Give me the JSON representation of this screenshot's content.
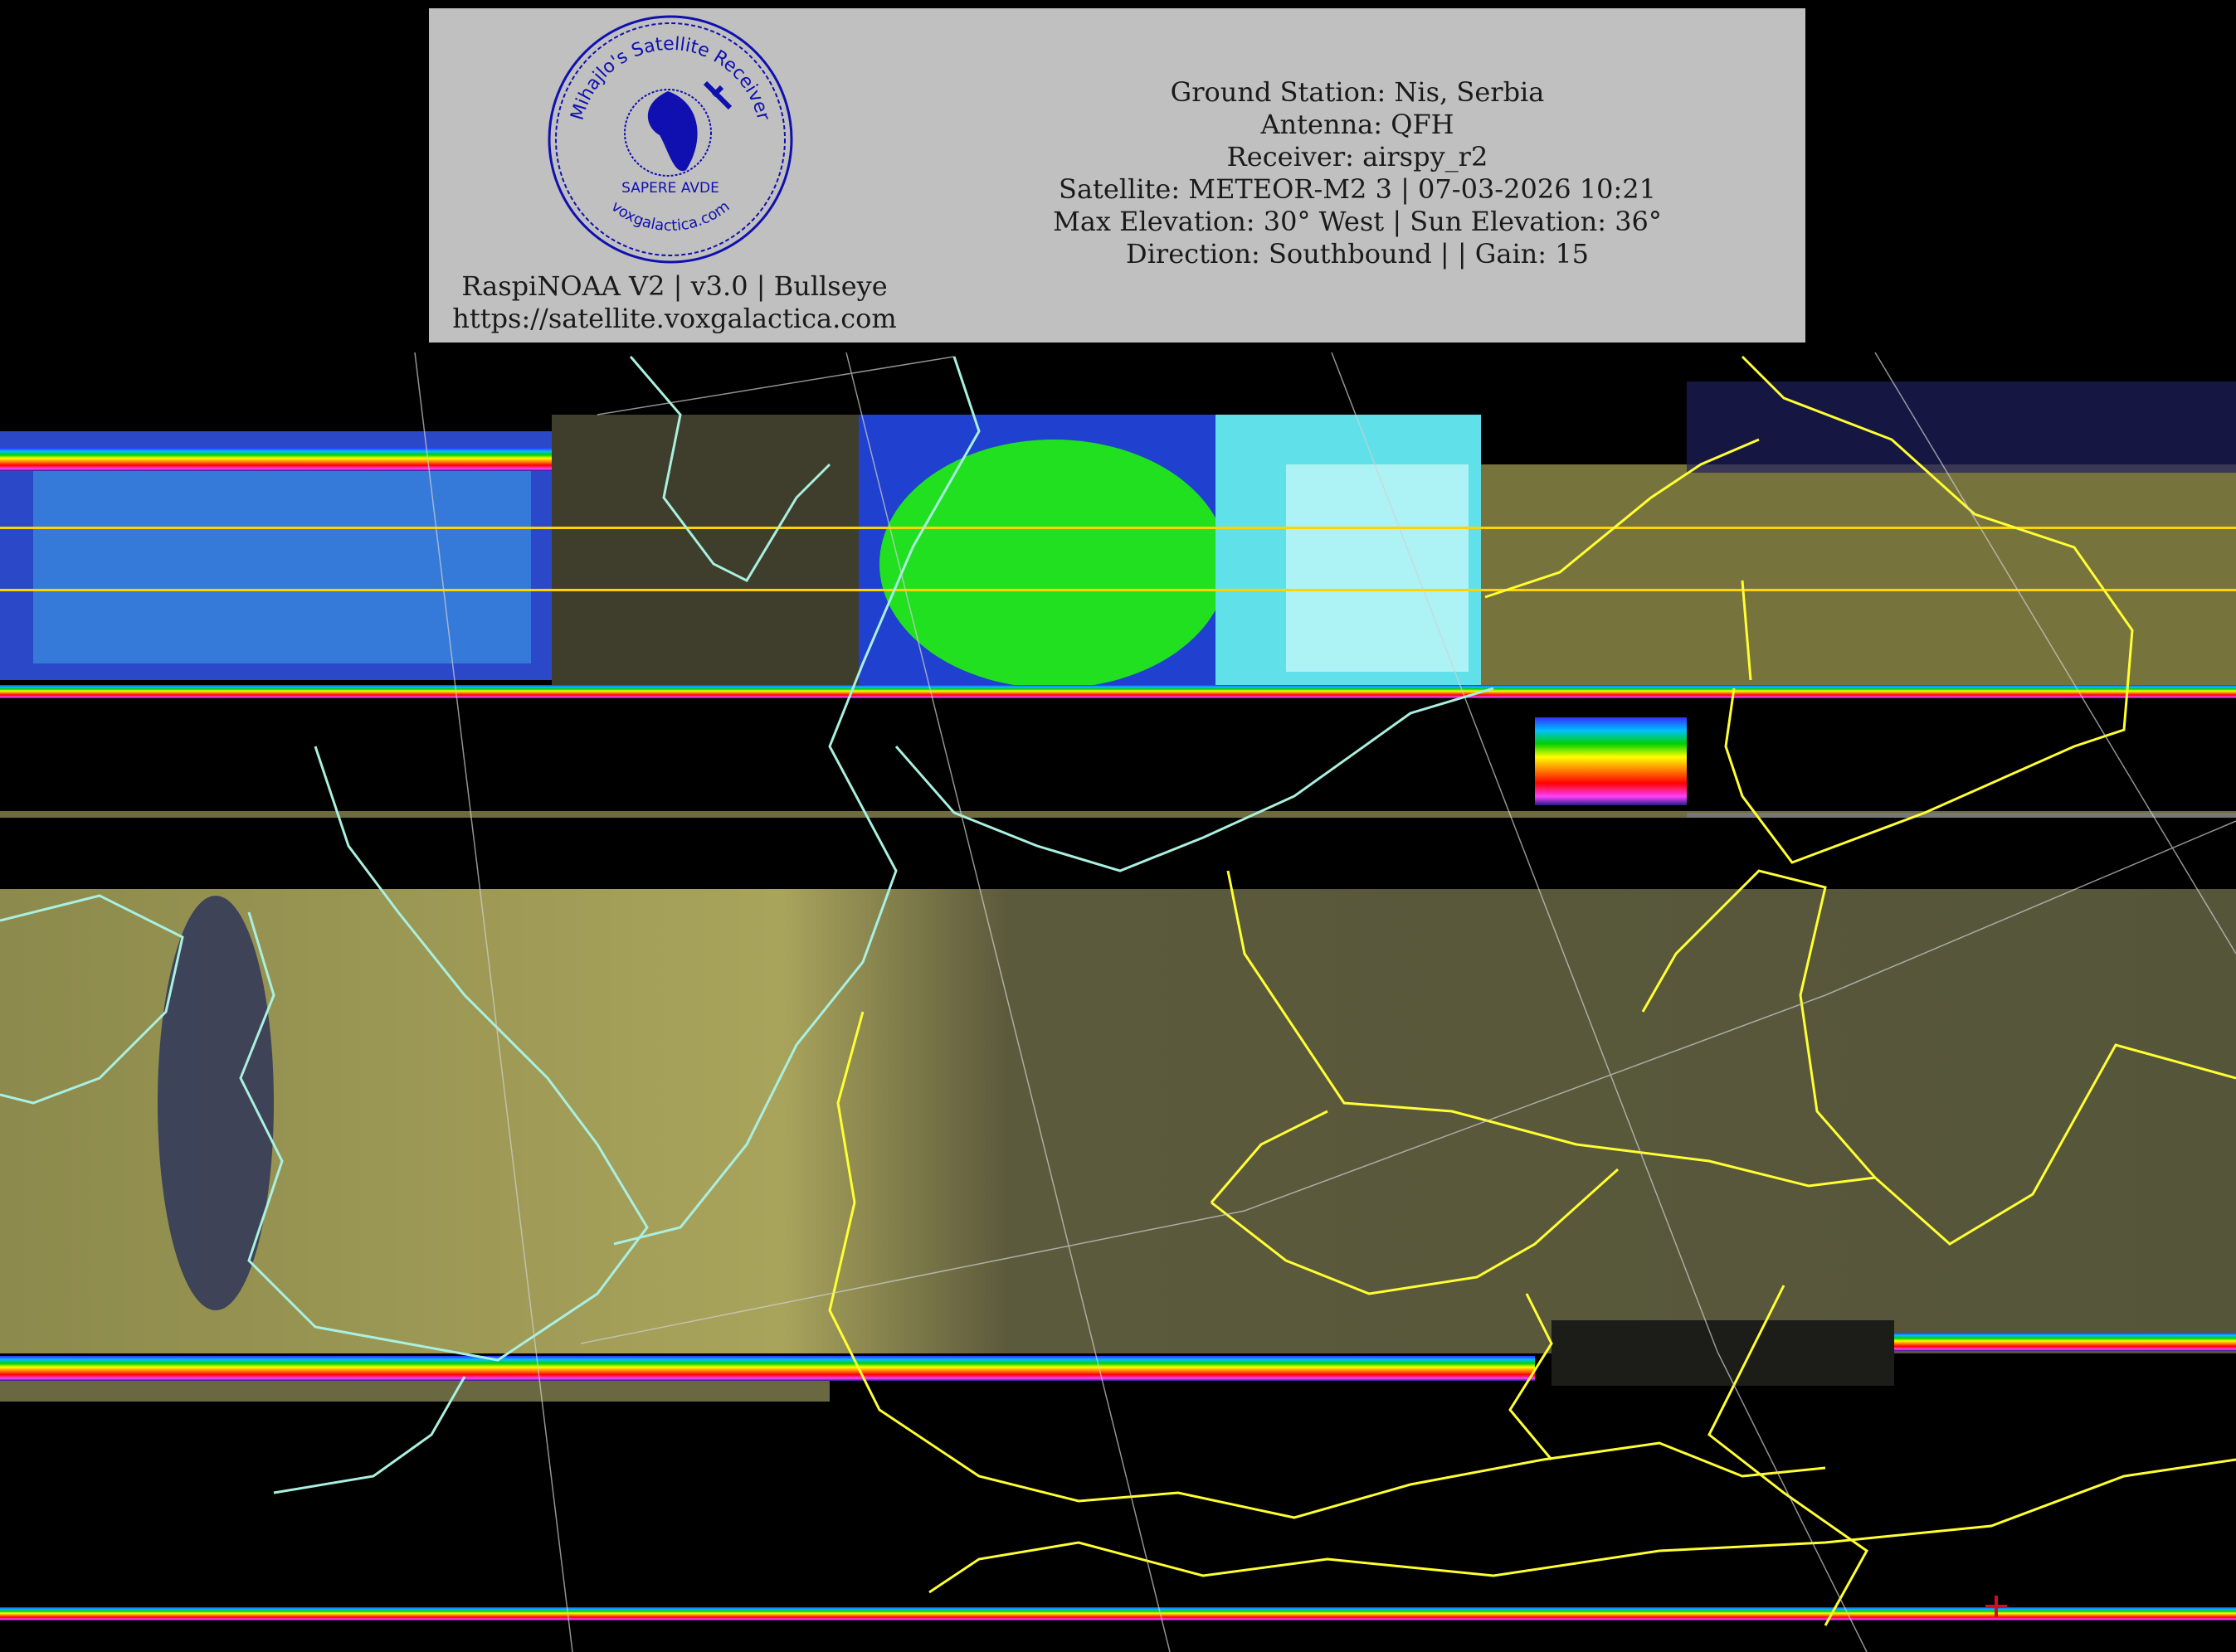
{
  "header": {
    "info_lines": [
      "Ground Station: Nis, Serbia",
      "Antenna: QFH",
      "Receiver: airspy_r2",
      "Satellite: METEOR-M2 3 | 07-03-2026 10:21",
      "Max Elevation: 30° West | Sun Elevation: 36°",
      "Direction: Southbound | | Gain: 15"
    ],
    "footer_lines": [
      "RaspiNOAA V2 | v3.0 | Bullseye",
      "https://satellite.voxgalactica.com"
    ],
    "logo": {
      "top_text": "Mihajlo's Satellite Receiver",
      "motto": "SAPERE AVDE",
      "bottom_text": "voxgalactica.com"
    }
  },
  "colors": {
    "header_background": "#c0c0c0",
    "logo_blue": "#1010b0",
    "country_borders": "#ffff33",
    "coastlines": "#aaf0e0",
    "land_imagery": "#6d6b3e",
    "marker": "#d01020"
  }
}
